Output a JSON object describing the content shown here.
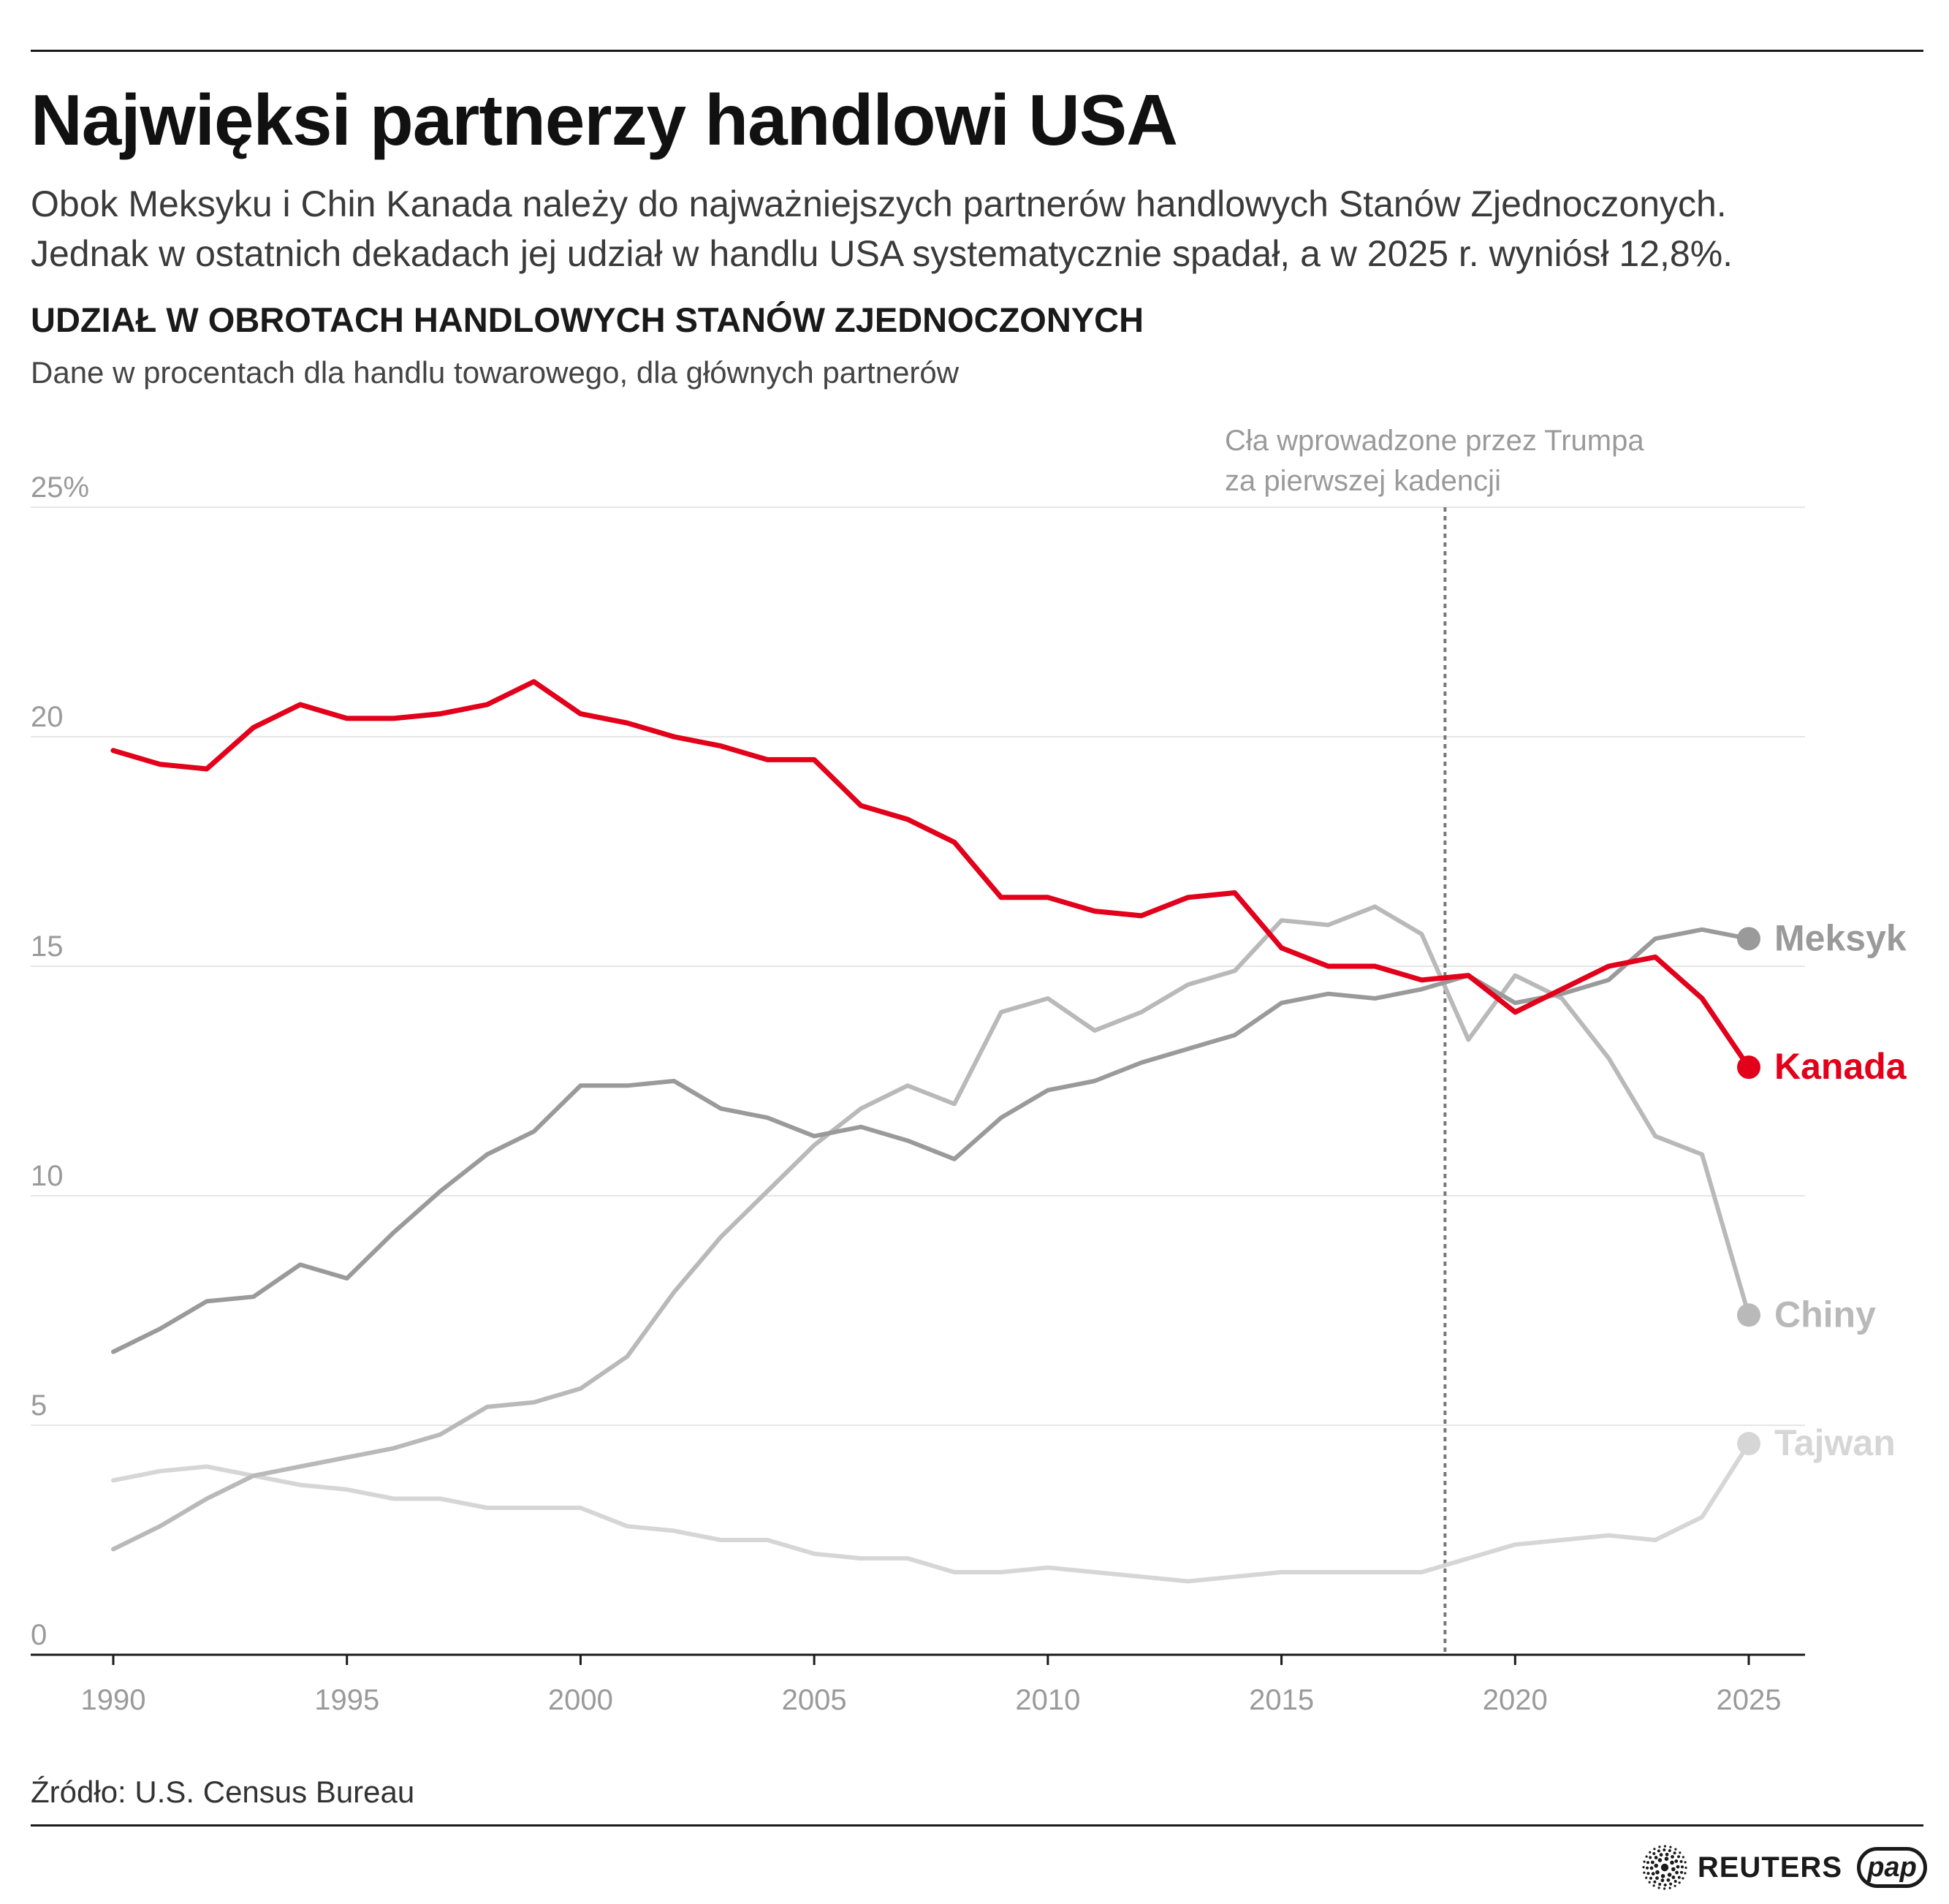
{
  "header": {
    "title": "Najwięksi partnerzy handlowi USA",
    "lede_line1": "Obok Meksyku i Chin Kanada należy do najważniejszych partnerów handlowych Stanów Zjednoczonych.",
    "lede_line2": "Jednak w ostatnich dekadach jej udział w handlu USA systematycznie spadał, a w 2025 r. wyniósł 12,8%."
  },
  "chart_title": "UDZIAŁ W OBROTACH HANDLOWYCH STANÓW ZJEDNOCZONYCH",
  "chart_subtitle": "Dane w procentach dla handlu towarowego, dla głównych partnerów",
  "source": "Źródło: U.S. Census Bureau",
  "logos": {
    "reuters": "REUTERS",
    "pap": "pap"
  },
  "chart_data": {
    "type": "line",
    "x": [
      1990,
      1991,
      1992,
      1993,
      1994,
      1995,
      1996,
      1997,
      1998,
      1999,
      2000,
      2001,
      2002,
      2003,
      2004,
      2005,
      2006,
      2007,
      2008,
      2009,
      2010,
      2011,
      2012,
      2013,
      2014,
      2015,
      2016,
      2017,
      2018,
      2019,
      2020,
      2021,
      2022,
      2023,
      2024,
      2025
    ],
    "xticks": [
      1990,
      1995,
      2000,
      2005,
      2010,
      2015,
      2020,
      2025
    ],
    "xtick_labels": [
      "1990",
      "1995",
      "2000",
      "2005",
      "2010",
      "2015",
      "2020",
      "2025"
    ],
    "yticks": [
      0,
      5,
      10,
      15,
      20,
      25
    ],
    "ytick_labels": [
      "0",
      "5",
      "10",
      "15",
      "20",
      "25%"
    ],
    "ylim": [
      0,
      25
    ],
    "grid": true,
    "annotation": {
      "x": 2018.5,
      "line1": "Cła wprowadzone przez Trumpa",
      "line2": "za pierwszej kadencji"
    },
    "series": [
      {
        "name": "Kanada",
        "color": "#e2001a",
        "emphasis": true,
        "values": [
          19.7,
          19.4,
          19.3,
          20.2,
          20.7,
          20.4,
          20.4,
          20.5,
          20.7,
          21.2,
          20.5,
          20.3,
          20.0,
          19.8,
          19.5,
          19.5,
          18.5,
          18.2,
          17.7,
          16.5,
          16.5,
          16.2,
          16.1,
          16.5,
          16.6,
          15.4,
          15.0,
          15.0,
          14.7,
          14.8,
          14.0,
          14.5,
          15.0,
          15.2,
          14.3,
          12.8
        ]
      },
      {
        "name": "Meksyk",
        "color": "#9a9a9a",
        "values": [
          6.6,
          7.1,
          7.7,
          7.8,
          8.5,
          8.2,
          9.2,
          10.1,
          10.9,
          11.4,
          12.4,
          12.4,
          12.5,
          11.9,
          11.7,
          11.3,
          11.5,
          11.2,
          10.8,
          11.7,
          12.3,
          12.5,
          12.9,
          13.2,
          13.5,
          14.2,
          14.4,
          14.3,
          14.5,
          14.8,
          14.2,
          14.4,
          14.7,
          15.6,
          15.8,
          15.6
        ]
      },
      {
        "name": "Chiny",
        "color": "#b9b9b9",
        "values": [
          2.3,
          2.8,
          3.4,
          3.9,
          4.1,
          4.3,
          4.5,
          4.8,
          5.4,
          5.5,
          5.8,
          6.5,
          7.9,
          9.1,
          10.1,
          11.1,
          11.9,
          12.4,
          12.0,
          14.0,
          14.3,
          13.6,
          14.0,
          14.6,
          14.9,
          16.0,
          15.9,
          16.3,
          15.7,
          13.4,
          14.8,
          14.3,
          13.0,
          11.3,
          10.9,
          7.4
        ]
      },
      {
        "name": "Tajwan",
        "color": "#d6d6d6",
        "values": [
          3.8,
          4.0,
          4.1,
          3.9,
          3.7,
          3.6,
          3.4,
          3.4,
          3.2,
          3.2,
          3.2,
          2.8,
          2.7,
          2.5,
          2.5,
          2.2,
          2.1,
          2.1,
          1.8,
          1.8,
          1.9,
          1.8,
          1.7,
          1.6,
          1.7,
          1.8,
          1.8,
          1.8,
          1.8,
          2.1,
          2.4,
          2.5,
          2.6,
          2.5,
          3.0,
          4.6
        ]
      }
    ]
  }
}
